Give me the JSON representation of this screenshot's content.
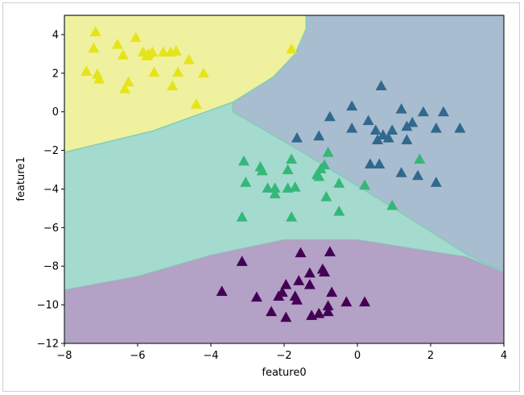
{
  "chart_data": {
    "type": "scatter",
    "title": "",
    "xlabel": "feature0",
    "ylabel": "feature1",
    "xlim": [
      -8,
      4
    ],
    "ylim": [
      -12,
      5
    ],
    "xticks": [
      -8,
      -6,
      -4,
      -2,
      0,
      2,
      4
    ],
    "yticks": [
      -12,
      -10,
      -8,
      -6,
      -4,
      -2,
      0,
      2,
      4
    ],
    "xtick_labels": [
      "−8",
      "−6",
      "−4",
      "−2",
      "0",
      "2",
      "4"
    ],
    "ytick_labels": [
      "−12",
      "−10",
      "−8",
      "−6",
      "−4",
      "−2",
      "0",
      "2",
      "4"
    ],
    "marker": "triangle-up",
    "grid": false,
    "legend": "none",
    "regions": [
      {
        "class": 0,
        "color": "#b3a1c6"
      },
      {
        "class": 1,
        "color": "#a8bdcf"
      },
      {
        "class": 2,
        "color": "#a5dacf"
      },
      {
        "class": 3,
        "color": "#eff19e"
      }
    ],
    "series": [
      {
        "class": 0,
        "color": "#440154",
        "points": [
          [
            -3.7,
            -9.3
          ],
          [
            -3.15,
            -7.75
          ],
          [
            -2.75,
            -9.6
          ],
          [
            -2.35,
            -10.35
          ],
          [
            -2.15,
            -9.55
          ],
          [
            -2.05,
            -9.35
          ],
          [
            -1.95,
            -8.95
          ],
          [
            -1.95,
            -10.65
          ],
          [
            -1.7,
            -9.55
          ],
          [
            -1.65,
            -9.75
          ],
          [
            -1.6,
            -8.75
          ],
          [
            -1.55,
            -7.3
          ],
          [
            -1.3,
            -8.35
          ],
          [
            -1.3,
            -8.95
          ],
          [
            -1.25,
            -10.55
          ],
          [
            -1.05,
            -10.45
          ],
          [
            -0.95,
            -8.15
          ],
          [
            -0.9,
            -8.3
          ],
          [
            -0.8,
            -10.35
          ],
          [
            -0.8,
            -10.05
          ],
          [
            -0.75,
            -7.25
          ],
          [
            -0.7,
            -9.35
          ],
          [
            -0.3,
            -9.85
          ],
          [
            0.2,
            -9.85
          ]
        ]
      },
      {
        "class": 1,
        "color": "#31688e",
        "points": [
          [
            -1.65,
            -1.35
          ],
          [
            -1.05,
            -1.25
          ],
          [
            -0.75,
            -0.25
          ],
          [
            -0.15,
            0.3
          ],
          [
            -0.15,
            -0.85
          ],
          [
            0.3,
            -0.45
          ],
          [
            0.35,
            -2.7
          ],
          [
            0.5,
            -0.95
          ],
          [
            0.55,
            -1.45
          ],
          [
            0.6,
            -2.7
          ],
          [
            0.65,
            1.35
          ],
          [
            0.7,
            -1.2
          ],
          [
            0.85,
            -1.35
          ],
          [
            0.95,
            -0.95
          ],
          [
            1.2,
            0.15
          ],
          [
            1.2,
            -3.15
          ],
          [
            1.35,
            -1.45
          ],
          [
            1.35,
            -0.75
          ],
          [
            1.5,
            -0.55
          ],
          [
            1.65,
            -3.3
          ],
          [
            1.8,
            0.0
          ],
          [
            2.15,
            -0.85
          ],
          [
            2.15,
            -3.65
          ],
          [
            2.35,
            0.0
          ],
          [
            2.8,
            -0.85
          ]
        ]
      },
      {
        "class": 2,
        "color": "#35b779",
        "points": [
          [
            -3.15,
            -5.45
          ],
          [
            -3.1,
            -2.55
          ],
          [
            -3.05,
            -3.65
          ],
          [
            -2.65,
            -2.85
          ],
          [
            -2.6,
            -3.05
          ],
          [
            -2.45,
            -3.95
          ],
          [
            -2.25,
            -4.25
          ],
          [
            -2.25,
            -3.95
          ],
          [
            -1.9,
            -3.0
          ],
          [
            -1.9,
            -3.95
          ],
          [
            -1.8,
            -5.45
          ],
          [
            -1.8,
            -2.45
          ],
          [
            -1.7,
            -3.9
          ],
          [
            -1.1,
            -3.25
          ],
          [
            -1.05,
            -3.35
          ],
          [
            -1.0,
            -2.95
          ],
          [
            -0.9,
            -2.75
          ],
          [
            -0.85,
            -4.4
          ],
          [
            -0.8,
            -2.1
          ],
          [
            -0.5,
            -3.7
          ],
          [
            -0.5,
            -5.15
          ],
          [
            0.2,
            -3.8
          ],
          [
            0.95,
            -4.85
          ],
          [
            1.7,
            -2.45
          ]
        ]
      },
      {
        "class": 3,
        "color": "#e5e419",
        "points": [
          [
            -7.4,
            2.1
          ],
          [
            -7.2,
            3.3
          ],
          [
            -7.15,
            4.15
          ],
          [
            -7.1,
            1.95
          ],
          [
            -7.05,
            1.7
          ],
          [
            -6.55,
            3.5
          ],
          [
            -6.4,
            2.95
          ],
          [
            -6.35,
            1.2
          ],
          [
            -6.25,
            1.55
          ],
          [
            -6.05,
            3.85
          ],
          [
            -5.85,
            3.1
          ],
          [
            -5.75,
            2.9
          ],
          [
            -5.7,
            3.0
          ],
          [
            -5.6,
            3.1
          ],
          [
            -5.55,
            2.05
          ],
          [
            -5.3,
            3.1
          ],
          [
            -5.1,
            3.1
          ],
          [
            -5.05,
            1.35
          ],
          [
            -4.95,
            3.15
          ],
          [
            -4.9,
            2.05
          ],
          [
            -4.6,
            2.7
          ],
          [
            -4.4,
            0.4
          ],
          [
            -4.2,
            2.0
          ],
          [
            -1.8,
            3.25
          ]
        ]
      }
    ]
  }
}
